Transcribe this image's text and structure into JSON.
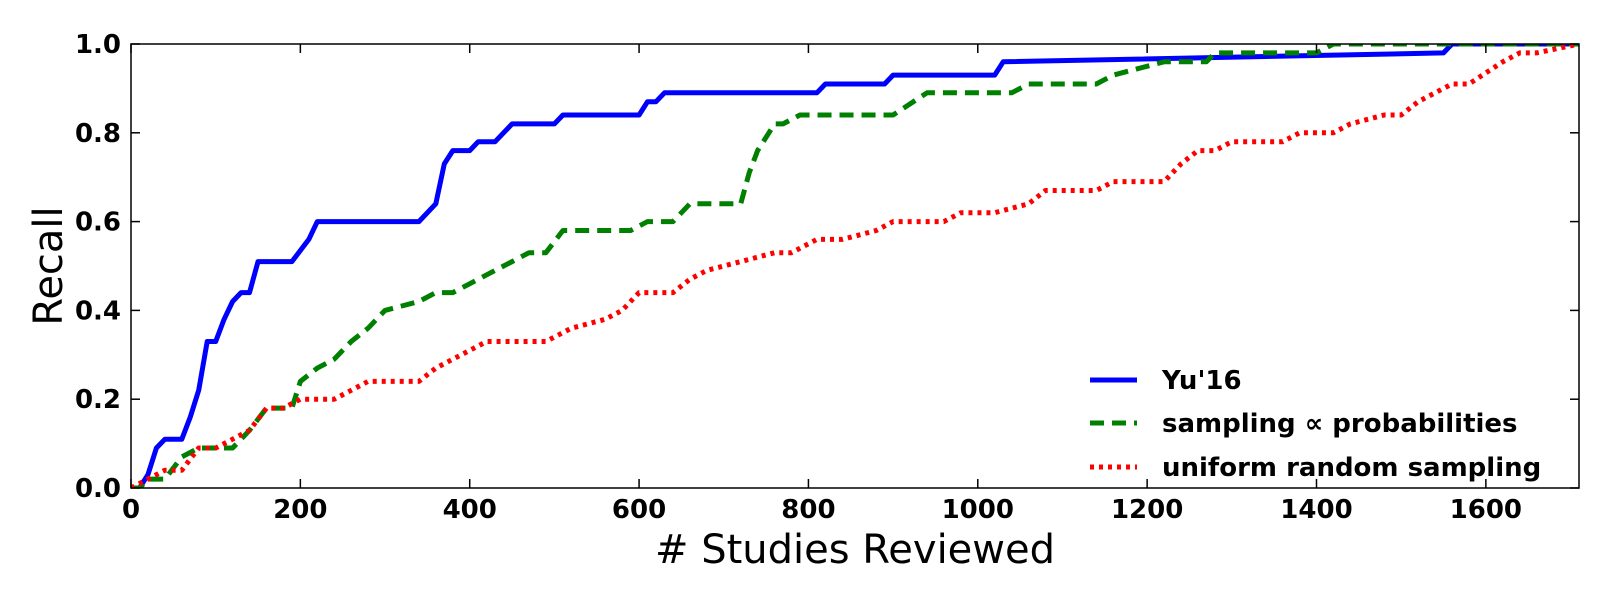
{
  "chart_data": {
    "type": "line",
    "title": "",
    "xlabel": "# Studies Reviewed",
    "ylabel": "Recall",
    "xlim": [
      0,
      1710
    ],
    "ylim": [
      0,
      1.0
    ],
    "x_ticks": [
      0,
      200,
      400,
      600,
      800,
      1000,
      1200,
      1400,
      1600
    ],
    "y_ticks": [
      0.0,
      0.2,
      0.4,
      0.6,
      0.8,
      1.0
    ],
    "x_tick_labels": [
      "0",
      "200",
      "400",
      "600",
      "800",
      "1000",
      "1200",
      "1400",
      "1600"
    ],
    "y_tick_labels": [
      "0.0",
      "0.2",
      "0.4",
      "0.6",
      "0.8",
      "1.0"
    ],
    "legend_position": "bottom-right",
    "series": [
      {
        "name": "Yu'16",
        "color": "#0000ff",
        "style": "solid",
        "x": [
          0,
          10,
          20,
          30,
          40,
          50,
          60,
          70,
          80,
          90,
          100,
          110,
          120,
          130,
          140,
          150,
          160,
          170,
          190,
          210,
          220,
          340,
          360,
          370,
          380,
          400,
          410,
          430,
          450,
          500,
          510,
          600,
          610,
          620,
          630,
          810,
          820,
          890,
          900,
          1020,
          1030,
          1550,
          1560,
          1710
        ],
        "y": [
          0.0,
          0.0,
          0.03,
          0.09,
          0.11,
          0.11,
          0.11,
          0.16,
          0.22,
          0.33,
          0.33,
          0.38,
          0.42,
          0.44,
          0.44,
          0.51,
          0.51,
          0.51,
          0.51,
          0.56,
          0.6,
          0.6,
          0.64,
          0.73,
          0.76,
          0.76,
          0.78,
          0.78,
          0.82,
          0.82,
          0.84,
          0.84,
          0.87,
          0.87,
          0.89,
          0.89,
          0.91,
          0.91,
          0.93,
          0.93,
          0.96,
          0.98,
          1.0,
          1.0
        ]
      },
      {
        "name": "sampling ∝ probabilities",
        "color": "#008000",
        "style": "dashed",
        "x": [
          0,
          10,
          20,
          40,
          60,
          80,
          120,
          140,
          160,
          190,
          200,
          220,
          240,
          260,
          280,
          300,
          340,
          360,
          380,
          410,
          430,
          450,
          470,
          490,
          510,
          590,
          610,
          640,
          660,
          720,
          730,
          740,
          760,
          770,
          790,
          800,
          880,
          900,
          940,
          1040,
          1060,
          1140,
          1160,
          1220,
          1270,
          1280,
          1400,
          1420,
          1710
        ],
        "y": [
          0.0,
          0.0,
          0.02,
          0.02,
          0.07,
          0.09,
          0.09,
          0.13,
          0.18,
          0.18,
          0.24,
          0.27,
          0.29,
          0.33,
          0.36,
          0.4,
          0.42,
          0.44,
          0.44,
          0.47,
          0.49,
          0.51,
          0.53,
          0.53,
          0.58,
          0.58,
          0.6,
          0.6,
          0.64,
          0.64,
          0.71,
          0.76,
          0.82,
          0.82,
          0.84,
          0.84,
          0.84,
          0.84,
          0.89,
          0.89,
          0.91,
          0.91,
          0.93,
          0.96,
          0.96,
          0.98,
          0.98,
          1.0,
          1.0
        ]
      },
      {
        "name": "uniform random sampling",
        "color": "#ff0000",
        "style": "dotted",
        "x": [
          0,
          20,
          40,
          60,
          80,
          100,
          120,
          140,
          160,
          180,
          200,
          240,
          260,
          280,
          340,
          360,
          380,
          400,
          420,
          440,
          490,
          520,
          560,
          580,
          600,
          640,
          660,
          680,
          720,
          760,
          780,
          810,
          840,
          880,
          900,
          960,
          980,
          1020,
          1060,
          1080,
          1140,
          1160,
          1220,
          1240,
          1260,
          1280,
          1300,
          1360,
          1380,
          1420,
          1440,
          1480,
          1500,
          1520,
          1560,
          1580,
          1620,
          1640,
          1660,
          1710
        ],
        "y": [
          0.0,
          0.02,
          0.04,
          0.04,
          0.09,
          0.09,
          0.11,
          0.13,
          0.18,
          0.18,
          0.2,
          0.2,
          0.22,
          0.24,
          0.24,
          0.27,
          0.29,
          0.31,
          0.33,
          0.33,
          0.33,
          0.36,
          0.38,
          0.4,
          0.44,
          0.44,
          0.47,
          0.49,
          0.51,
          0.53,
          0.53,
          0.56,
          0.56,
          0.58,
          0.6,
          0.6,
          0.62,
          0.62,
          0.64,
          0.67,
          0.67,
          0.69,
          0.69,
          0.73,
          0.76,
          0.76,
          0.78,
          0.78,
          0.8,
          0.8,
          0.82,
          0.84,
          0.84,
          0.87,
          0.91,
          0.91,
          0.96,
          0.98,
          0.98,
          1.0
        ]
      }
    ]
  }
}
